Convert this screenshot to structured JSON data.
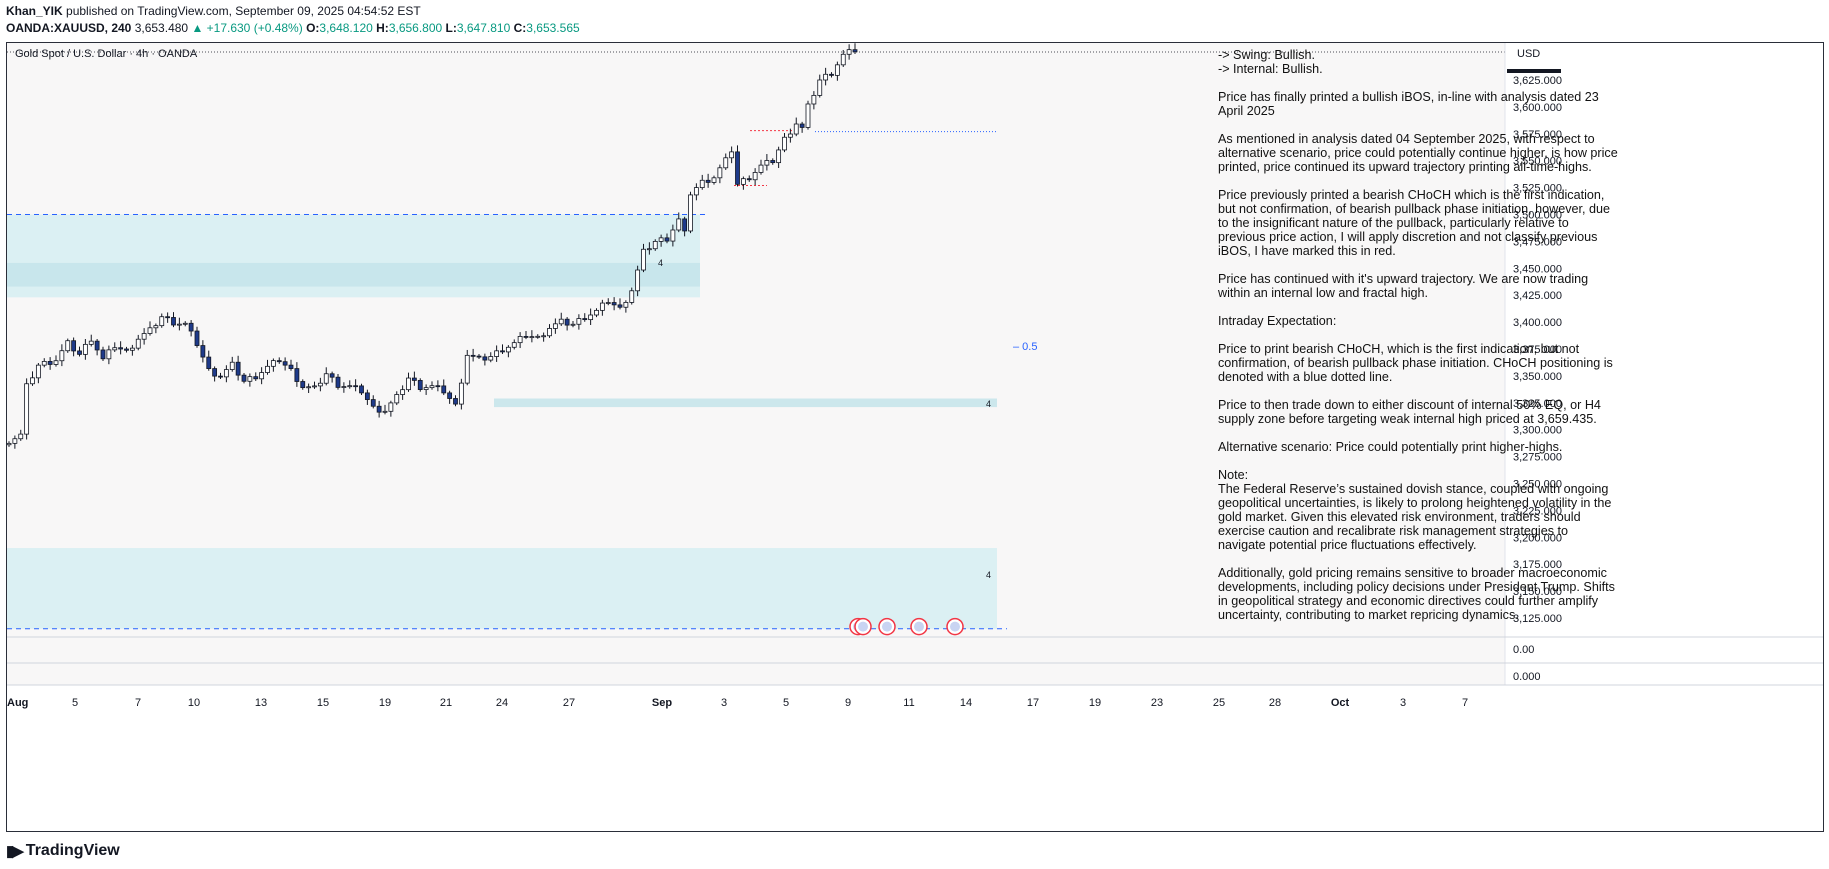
{
  "header": {
    "author": "Khan_YIK",
    "published": "published on TradingView.com, September 09, 2025 04:54:52 EST",
    "symbol": "OANDA:XAUUSD, 240",
    "last": "3,653.480",
    "change": "▲ +17.630 (+0.48%)",
    "o_label": "O:",
    "o": "3,648.120",
    "h_label": "H:",
    "h": "3,656.800",
    "l_label": "L:",
    "l": "3,647.810",
    "c_label": "C:",
    "c": "3,653.565"
  },
  "chart_title": "Gold Spot / U.S. Dollar · 4h · OANDA",
  "currency": "USD",
  "mid_label": "0.5",
  "zone_label": "4",
  "footer_brand": "TradingView",
  "notes": [
    "-> Swing:  Bullish.",
    "-> Internal:  Bullish.",
    "Price has finally printed a bullish iBOS, in-line with analysis dated 23 April 2025",
    "As mentioned in analysis dated 04 September 2025, with respect to alternative scenario, price could potentially continue higher, is how price printed, price continued its upward trajectory printing all-time-highs.",
    "Price previously printed a bearish CHoCH which is the first indication, but not confirmation, of bearish pullback phase initiation, however, due to the insignificant nature of the pullback, particularly relative to previous price action, I will apply discretion and not classify previous iBOS, I have marked this in red.",
    "Price has continued with it's upward trajectory.  We are now trading within an internal low and fractal high.",
    "Intraday Expectation:",
    "Price to print bearish CHoCH, which is the first indication, but not confirmation, of bearish pullback phase initiation. CHoCH positioning is denoted with a blue dotted line.",
    "Price to then trade down to either discount of internal 50% EQ, or H4 supply zone before targeting weak internal high priced at 3,659.435.",
    "Alternative scenario:  Price could potentially print higher-highs.",
    "Note:",
    "The Federal Reserve’s sustained dovish stance, coupled with ongoing geopolitical uncertainties, is likely to prolong heightened volatility in the gold market. Given this elevated risk environment, traders should exercise caution and recalibrate risk management strategies to navigate potential price fluctuations effectively.",
    "Additionally, gold pricing remains sensitive to broader macroeconomic developments, including policy decisions under President Trump. Shifts in geopolitical strategy and economic directives could further amplify uncertainty, contributing to market repricing dynamics."
  ],
  "chart_data": {
    "type": "candlestick",
    "title": "Gold Spot / U.S. Dollar · 4h · OANDA",
    "y_ticks": [
      3625,
      3600,
      3575,
      3550,
      3525,
      3500,
      3475,
      3450,
      3425,
      3400,
      3375,
      3350,
      3325,
      3300,
      3275,
      3250,
      3225,
      3200,
      3175,
      3150,
      3125
    ],
    "y_tick_labels": [
      "3,625.000",
      "3,600.000",
      "3,575.000",
      "3,550.000",
      "3,525.000",
      "3,500.000",
      "3,475.000",
      "3,450.000",
      "3,425.000",
      "3,400.000",
      "3,375.000",
      "3,350.000",
      "3,325.000",
      "3,300.000",
      "3,275.000",
      "3,250.000",
      "3,225.000",
      "3,200.000",
      "3,175.000",
      "3,150.000",
      "3,125.000"
    ],
    "lower_pane_labels": [
      "0.00",
      "0.000"
    ],
    "x_tick_labels": [
      "Aug",
      "5",
      "7",
      "10",
      "13",
      "15",
      "19",
      "21",
      "24",
      "27",
      "Sep",
      "3",
      "5",
      "9",
      "11",
      "14",
      "17",
      "19",
      "23",
      "25",
      "28",
      "Oct",
      "3",
      "7"
    ],
    "close_path": [
      [
        0,
        3290
      ],
      [
        2,
        3295
      ],
      [
        3,
        3340
      ],
      [
        5,
        3360
      ],
      [
        8,
        3365
      ],
      [
        10,
        3380
      ],
      [
        12,
        3370
      ],
      [
        14,
        3385
      ],
      [
        16,
        3365
      ],
      [
        18,
        3378
      ],
      [
        20,
        3372
      ],
      [
        22,
        3385
      ],
      [
        24,
        3392
      ],
      [
        26,
        3405
      ],
      [
        28,
        3400
      ],
      [
        30,
        3398
      ],
      [
        32,
        3380
      ],
      [
        34,
        3355
      ],
      [
        36,
        3350
      ],
      [
        38,
        3360
      ],
      [
        40,
        3345
      ],
      [
        42,
        3350
      ],
      [
        44,
        3358
      ],
      [
        46,
        3365
      ],
      [
        48,
        3355
      ],
      [
        50,
        3340
      ],
      [
        52,
        3338
      ],
      [
        54,
        3352
      ],
      [
        56,
        3342
      ],
      [
        58,
        3340
      ],
      [
        60,
        3336
      ],
      [
        62,
        3320
      ],
      [
        64,
        3318
      ],
      [
        66,
        3330
      ],
      [
        68,
        3348
      ],
      [
        70,
        3340
      ],
      [
        72,
        3340
      ],
      [
        74,
        3336
      ],
      [
        76,
        3322
      ],
      [
        78,
        3370
      ],
      [
        80,
        3365
      ],
      [
        82,
        3368
      ],
      [
        84,
        3375
      ],
      [
        86,
        3380
      ],
      [
        88,
        3388
      ],
      [
        90,
        3385
      ],
      [
        92,
        3395
      ],
      [
        94,
        3400
      ],
      [
        96,
        3398
      ],
      [
        98,
        3405
      ],
      [
        100,
        3410
      ],
      [
        102,
        3420
      ],
      [
        104,
        3412
      ],
      [
        106,
        3430
      ],
      [
        108,
        3465
      ],
      [
        110,
        3475
      ],
      [
        112,
        3478
      ],
      [
        114,
        3495
      ],
      [
        115,
        3482
      ],
      [
        116,
        3520
      ],
      [
        118,
        3530
      ],
      [
        120,
        3535
      ],
      [
        122,
        3550
      ],
      [
        123,
        3560
      ],
      [
        124,
        3528
      ],
      [
        126,
        3535
      ],
      [
        128,
        3545
      ],
      [
        130,
        3550
      ],
      [
        132,
        3570
      ],
      [
        134,
        3585
      ],
      [
        135,
        3580
      ],
      [
        136,
        3600
      ],
      [
        138,
        3625
      ],
      [
        140,
        3632
      ],
      [
        142,
        3648
      ],
      [
        144,
        3653
      ]
    ],
    "zones": [
      {
        "y_top": 3500,
        "y_bottom": 3423,
        "shade": "light-cyan"
      },
      {
        "y_top": 3455,
        "y_bottom": 3433,
        "shade": "cyan"
      },
      {
        "y_top": 3329,
        "y_bottom": 3321,
        "shade": "cyan"
      },
      {
        "y_top": 3190,
        "y_bottom": 3115,
        "shade": "light-cyan"
      }
    ],
    "lines": [
      {
        "y": 3500,
        "style": "dashed",
        "color": "#2962ff"
      },
      {
        "y": 3577,
        "style": "dotted",
        "color": "#2962ff"
      },
      {
        "y": 3115,
        "style": "dashed",
        "color": "#2962ff"
      }
    ],
    "colors": {
      "up": "#ffffff",
      "down": "#1e3a8a",
      "wick": "#131722",
      "zone": "#d6eef2",
      "zone_dark": "#c4e4ea"
    }
  }
}
